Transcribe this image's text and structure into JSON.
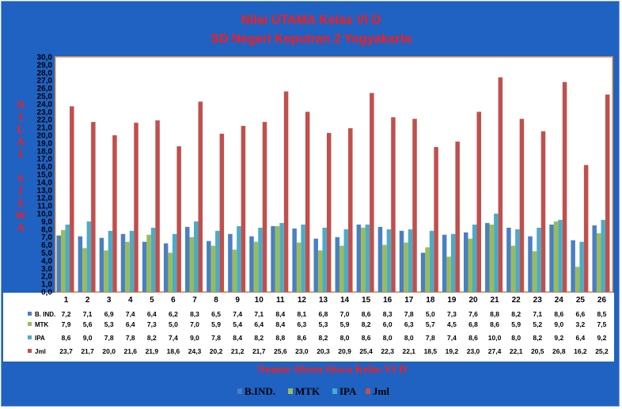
{
  "chart_data": {
    "type": "bar",
    "title": "Nilai UTAMA Kelas VI D",
    "subtitle": "SD Negeri Keputran 2 Yogyakarta",
    "ylabel": "NILAI SISWA",
    "xlabel": "Nomor Absen Siswa Kelas VI D",
    "ylim": [
      0,
      30
    ],
    "ytick_step": 1,
    "grid": false,
    "legend_position": "bottom",
    "categories": [
      "1",
      "2",
      "3",
      "4",
      "5",
      "6",
      "7",
      "8",
      "9",
      "10",
      "11",
      "12",
      "13",
      "14",
      "15",
      "16",
      "17",
      "18",
      "19",
      "20",
      "21",
      "22",
      "23",
      "24",
      "25",
      "26"
    ],
    "series": [
      {
        "name": "B. IND.",
        "legend_label": "B.IND.",
        "color": "#4a7fc1",
        "values": [
          7.2,
          7.1,
          6.9,
          7.4,
          6.4,
          6.2,
          8.3,
          6.5,
          7.4,
          7.1,
          8.4,
          8.1,
          6.8,
          7.0,
          8.6,
          8.3,
          7.8,
          5.0,
          7.3,
          7.6,
          8.8,
          8.2,
          7.1,
          8.6,
          6.6,
          8.5
        ]
      },
      {
        "name": "MTK",
        "legend_label": "MTK",
        "color": "#9bbb59",
        "values": [
          7.9,
          5.6,
          5.3,
          6.4,
          7.3,
          5.0,
          7.0,
          5.9,
          5.4,
          6.4,
          8.4,
          6.3,
          5.3,
          5.9,
          8.2,
          6.0,
          6.3,
          5.7,
          4.5,
          6.8,
          8.6,
          5.9,
          5.2,
          9.0,
          3.2,
          7.5
        ]
      },
      {
        "name": "IPA",
        "legend_label": "IPA",
        "color": "#4bacc6",
        "values": [
          8.6,
          9.0,
          7.8,
          7.8,
          8.2,
          7.4,
          9.0,
          7.8,
          8.4,
          8.2,
          8.8,
          8.6,
          8.2,
          8.0,
          8.6,
          8.0,
          8.0,
          7.8,
          7.4,
          8.6,
          10.0,
          8.0,
          8.2,
          9.2,
          6.4,
          9.2
        ]
      },
      {
        "name": "Jml",
        "legend_label": "Jml",
        "color": "#c0504d",
        "values": [
          23.7,
          21.7,
          20.0,
          21.6,
          21.9,
          18.6,
          24.3,
          20.2,
          21.2,
          21.7,
          25.6,
          23.0,
          20.3,
          20.9,
          25.4,
          22.3,
          22.1,
          18.5,
          19.2,
          23.0,
          27.4,
          22.1,
          20.5,
          26.8,
          16.2,
          25.2
        ]
      }
    ]
  }
}
